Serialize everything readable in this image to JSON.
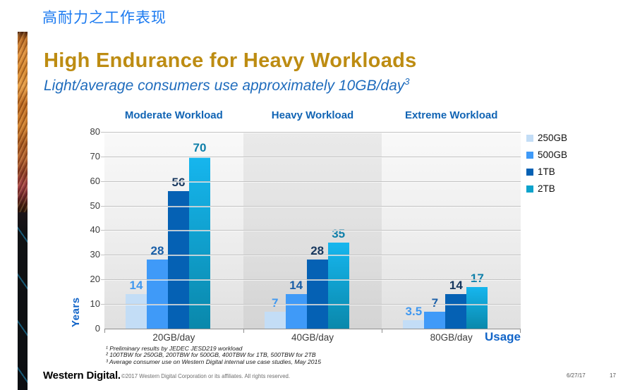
{
  "slide": {
    "cn_title": "高耐力之工作表现",
    "title": "High Endurance for Heavy Workloads",
    "subtitle": "Light/average consumers use approximately 10GB/day",
    "subtitle_sup": "3",
    "colors": {
      "cn_title_blue": "#1b7af0",
      "title_gold": "#bd8c12",
      "subtitle_blue": "#1f6cbd",
      "header_blue": "#1164b4",
      "axis_label_blue": "#1164c8"
    }
  },
  "chart_data": {
    "type": "bar",
    "group_headers": [
      "Moderate Workload",
      "Heavy Workload",
      "Extreme Workload"
    ],
    "categories": [
      "20GB/day",
      "40GB/day",
      "80GB/day"
    ],
    "series": [
      {
        "name": "250GB",
        "color": "#c3ddf6",
        "label_color": "#4098f0",
        "values": [
          14,
          7,
          3.5
        ]
      },
      {
        "name": "500GB",
        "color": "#3f9af8",
        "label_color": "#1a5fa8",
        "values": [
          28,
          14,
          7
        ]
      },
      {
        "name": "1TB",
        "color": "#0561b4",
        "label_color": "#17375e",
        "values": [
          56,
          28,
          14
        ]
      },
      {
        "name": "2TB",
        "color": "#0da3cc",
        "gradient": [
          "#16b6ee",
          "#0a88ab"
        ],
        "label_color": "#0e7fa9",
        "values": [
          70,
          35,
          17
        ]
      }
    ],
    "ylabel": "Years",
    "xlabel": "Usage",
    "ylim": [
      0,
      80
    ],
    "ytick_step": 10,
    "grid": true,
    "legend_position": "right"
  },
  "footnotes": [
    "¹ Preliminary results by JEDEC JESD219 workload",
    "² 100TBW for 250GB, 200TBW for 500GB, 400TBW for 1TB, 500TBW for 2TB",
    "³ Average consumer use on Western Digital internal use case studies, May 2015"
  ],
  "footer": {
    "logo": "Western Digital.",
    "copyright": "©2017 Western Digital Corporation or its affiliates. All rights reserved.",
    "date": "6/27/17",
    "page": "17"
  }
}
